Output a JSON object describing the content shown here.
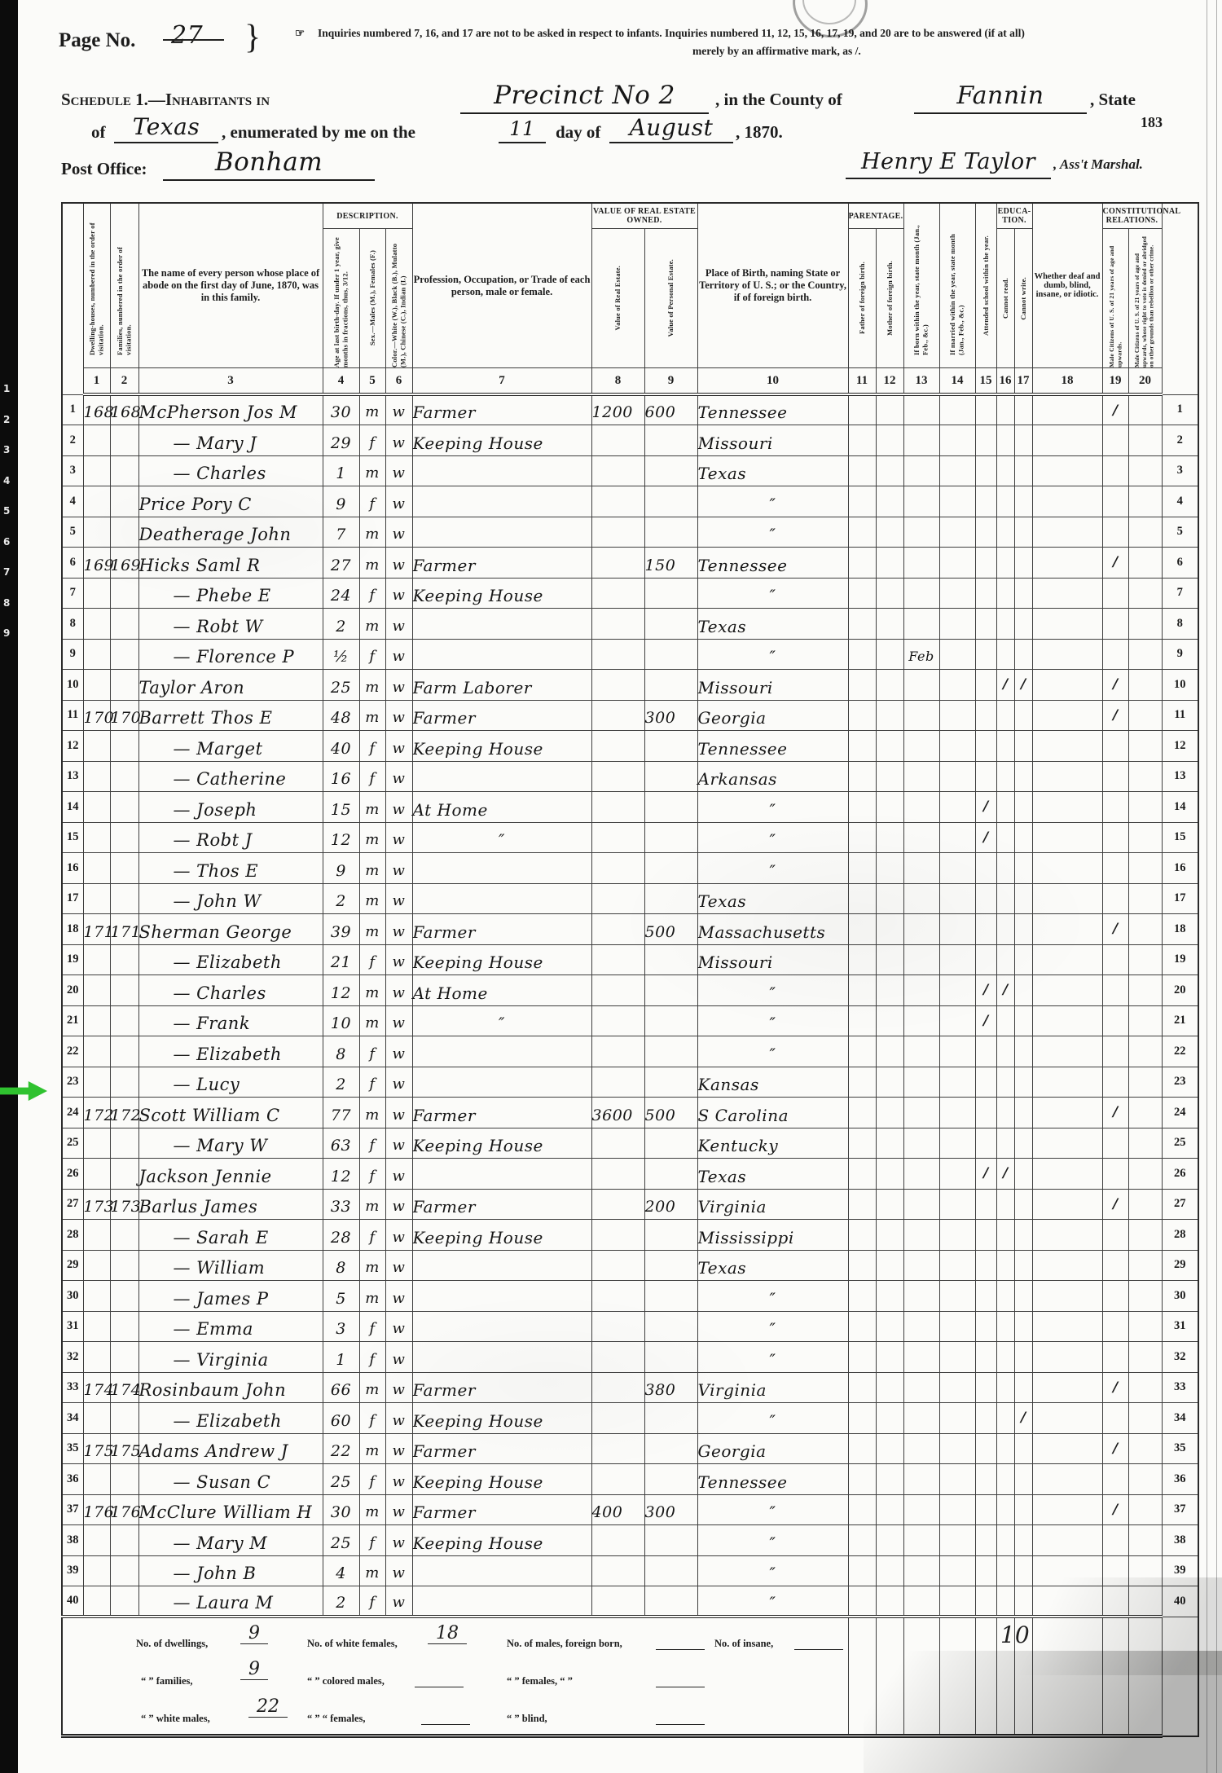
{
  "page_header": {
    "page_no_label": "Page No.",
    "page_no_value": "27",
    "brace": "}",
    "notice_icon": "☞",
    "notice_line1": "Inquiries numbered 7, 16, and 17 are not to be asked in respect to infants.  Inquiries numbered 11, 12, 15, 16, 17, 19, and 20 are to be answered (if at all)",
    "notice_line2": "merely by an affirmative mark, as /.",
    "schedule_label": "Schedule 1.—Inhabitants in",
    "division_value": "Precinct No 2",
    "county_label": ", in the County of",
    "county_value": "Fannin",
    "state_suffix": ", State",
    "of_label": "of",
    "state_value": "Texas",
    "enumerated_label": ", enumerated by me on the",
    "day_value": "11",
    "day_of_label": "day of",
    "month_value": "August",
    "year_suffix": ", 1870.",
    "sheet_number": "183",
    "post_office_label": "Post Office:",
    "post_office_value": "Bonham",
    "marshal_signature": "Henry E Taylor",
    "marshal_suffix": ", Ass't Marshal."
  },
  "table": {
    "bands": {
      "description": "Description.",
      "value_owned": "Value of Real Estate Owned.",
      "parentage": "Parentage.",
      "education": "Educa-tion.",
      "constitutional": "Constitutional Relations."
    },
    "columns": [
      {
        "no": "1",
        "header": "Dwelling-houses, numbered in the order of visitation."
      },
      {
        "no": "2",
        "header": "Families, numbered in the order of visitation."
      },
      {
        "no": "3",
        "header": "The name of every person whose place of abode on the first day of June, 1870, was in this family."
      },
      {
        "no": "4",
        "header": "Age at last birth-day. If under 1 year, give months in fractions, thus, 3/12."
      },
      {
        "no": "5",
        "header": "Sex.—Males (M.), Females (F.)"
      },
      {
        "no": "6",
        "header": "Color.—White (W.), Black (B.), Mulatto (M.), Chinese (C.), Indian (I.)"
      },
      {
        "no": "7",
        "header": "Profession, Occupation, or Trade of each person, male or female."
      },
      {
        "no": "8",
        "header": "Value of Real Estate."
      },
      {
        "no": "9",
        "header": "Value of Personal Estate."
      },
      {
        "no": "10",
        "header": "Place of Birth, naming State or Territory of U. S.; or the Country, if of foreign birth."
      },
      {
        "no": "11",
        "header": "Father of foreign birth."
      },
      {
        "no": "12",
        "header": "Mother of foreign birth."
      },
      {
        "no": "13",
        "header": "If born within the year, state month (Jan., Feb., &c.)"
      },
      {
        "no": "14",
        "header": "If married within the year, state month (Jan., Feb., &c.)"
      },
      {
        "no": "15",
        "header": "Attended school within the year."
      },
      {
        "no": "16",
        "header": "Cannot read."
      },
      {
        "no": "17",
        "header": "Cannot write."
      },
      {
        "no": "18",
        "header": "Whether deaf and dumb, blind, insane, or idiotic."
      },
      {
        "no": "19",
        "header": "Male Citizens of U. S. of 21 years of age and upwards."
      },
      {
        "no": "20",
        "header": "Male Citizens of U. S. of 21 years of age and upwards, whose right to vote is denied or abridged on other grounds than rebellion or other crime."
      }
    ],
    "rows": [
      {
        "n": 1,
        "dw": "168",
        "fam": "168",
        "name": "McPherson Jos M",
        "age": "30",
        "sex": "M",
        "race": "W",
        "occ": "Farmer",
        "re": "1200",
        "pe": "600",
        "birth": "Tennessee",
        "t19": "/"
      },
      {
        "n": 2,
        "name": "— Mary J",
        "age": "29",
        "sex": "F",
        "race": "W",
        "occ": "Keeping House",
        "birth": "Missouri"
      },
      {
        "n": 3,
        "name": "— Charles",
        "age": "1",
        "sex": "M",
        "race": "W",
        "birth": "Texas"
      },
      {
        "n": 4,
        "name": "Price Pory C",
        "age": "9",
        "sex": "F",
        "race": "W",
        "birth": "″"
      },
      {
        "n": 5,
        "name": "Deatherage John",
        "age": "7",
        "sex": "M",
        "race": "W",
        "birth": "″"
      },
      {
        "n": 6,
        "dw": "169",
        "fam": "169",
        "name": "Hicks Saml R",
        "age": "27",
        "sex": "M",
        "race": "W",
        "occ": "Farmer",
        "pe": "150",
        "birth": "Tennessee",
        "t19": "/"
      },
      {
        "n": 7,
        "name": "— Phebe E",
        "age": "24",
        "sex": "F",
        "race": "W",
        "occ": "Keeping House",
        "birth": "″"
      },
      {
        "n": 8,
        "name": "— Robt W",
        "age": "2",
        "sex": "M",
        "race": "W",
        "birth": "Texas"
      },
      {
        "n": 9,
        "name": "— Florence P",
        "age": "½",
        "sex": "F",
        "race": "W",
        "birth": "″",
        "m": "Feb"
      },
      {
        "n": 10,
        "name": "Taylor Aron",
        "age": "25",
        "sex": "M",
        "race": "W",
        "occ": "Farm Laborer",
        "birth": "Missouri",
        "t16": "/",
        "t17": "/",
        "t19": "/"
      },
      {
        "n": 11,
        "dw": "170",
        "fam": "170",
        "name": "Barrett Thos E",
        "age": "48",
        "sex": "M",
        "race": "W",
        "occ": "Farmer",
        "pe": "300",
        "birth": "Georgia",
        "t19": "/"
      },
      {
        "n": 12,
        "name": "— Marget",
        "age": "40",
        "sex": "F",
        "race": "W",
        "occ": "Keeping House",
        "birth": "Tennessee"
      },
      {
        "n": 13,
        "name": "— Catherine",
        "age": "16",
        "sex": "F",
        "race": "W",
        "birth": "Arkansas"
      },
      {
        "n": 14,
        "name": "— Joseph",
        "age": "15",
        "sex": "M",
        "race": "W",
        "occ": "At Home",
        "birth": "″",
        "t15": "/"
      },
      {
        "n": 15,
        "name": "— Robt J",
        "age": "12",
        "sex": "M",
        "race": "W",
        "occ": "″",
        "birth": "″",
        "t15": "/"
      },
      {
        "n": 16,
        "name": "— Thos E",
        "age": "9",
        "sex": "M",
        "race": "W",
        "birth": "″"
      },
      {
        "n": 17,
        "name": "— John W",
        "age": "2",
        "sex": "M",
        "race": "W",
        "birth": "Texas"
      },
      {
        "n": 18,
        "dw": "171",
        "fam": "171",
        "name": "Sherman George",
        "age": "39",
        "sex": "M",
        "race": "W",
        "occ": "Farmer",
        "pe": "500",
        "birth": "Massachusetts",
        "t19": "/"
      },
      {
        "n": 19,
        "name": "— Elizabeth",
        "age": "21",
        "sex": "F",
        "race": "W",
        "occ": "Keeping House",
        "birth": "Missouri"
      },
      {
        "n": 20,
        "name": "— Charles",
        "age": "12",
        "sex": "M",
        "race": "W",
        "occ": "At Home",
        "birth": "″",
        "t15": "/",
        "t16": "/"
      },
      {
        "n": 21,
        "name": "— Frank",
        "age": "10",
        "sex": "M",
        "race": "W",
        "occ": "″",
        "birth": "″",
        "t15": "/"
      },
      {
        "n": 22,
        "name": "— Elizabeth",
        "age": "8",
        "sex": "F",
        "race": "W",
        "birth": "″"
      },
      {
        "n": 23,
        "name": "— Lucy",
        "age": "2",
        "sex": "F",
        "race": "W",
        "birth": "Kansas"
      },
      {
        "n": 24,
        "dw": "172",
        "fam": "172",
        "name": "Scott William C",
        "age": "77",
        "sex": "M",
        "race": "W",
        "occ": "Farmer",
        "re": "3600",
        "pe": "500",
        "birth": "S Carolina",
        "t19": "/",
        "highlight": true
      },
      {
        "n": 25,
        "name": "— Mary W",
        "age": "63",
        "sex": "F",
        "race": "W",
        "occ": "Keeping House",
        "birth": "Kentucky"
      },
      {
        "n": 26,
        "name": "Jackson Jennie",
        "age": "12",
        "sex": "F",
        "race": "W",
        "birth": "Texas",
        "t15": "/",
        "t16": "/"
      },
      {
        "n": 27,
        "dw": "173",
        "fam": "173",
        "name": "Barlus James",
        "age": "33",
        "sex": "M",
        "race": "W",
        "occ": "Farmer",
        "pe": "200",
        "birth": "Virginia",
        "t19": "/"
      },
      {
        "n": 28,
        "name": "— Sarah E",
        "age": "28",
        "sex": "F",
        "race": "W",
        "occ": "Keeping House",
        "birth": "Mississippi"
      },
      {
        "n": 29,
        "name": "— William",
        "age": "8",
        "sex": "M",
        "race": "W",
        "birth": "Texas"
      },
      {
        "n": 30,
        "name": "— James P",
        "age": "5",
        "sex": "M",
        "race": "W",
        "birth": "″"
      },
      {
        "n": 31,
        "name": "— Emma",
        "age": "3",
        "sex": "F",
        "race": "W",
        "birth": "″"
      },
      {
        "n": 32,
        "name": "— Virginia",
        "age": "1",
        "sex": "F",
        "race": "W",
        "birth": "″"
      },
      {
        "n": 33,
        "dw": "174",
        "fam": "174",
        "name": "Rosinbaum John",
        "age": "66",
        "sex": "M",
        "race": "W",
        "occ": "Farmer",
        "pe": "380",
        "birth": "Virginia",
        "t19": "/"
      },
      {
        "n": 34,
        "name": "— Elizabeth",
        "age": "60",
        "sex": "F",
        "race": "W",
        "occ": "Keeping House",
        "birth": "″",
        "t17": "/"
      },
      {
        "n": 35,
        "dw": "175",
        "fam": "175",
        "name": "Adams Andrew J",
        "age": "22",
        "sex": "M",
        "race": "W",
        "occ": "Farmer",
        "birth": "Georgia",
        "t19": "/"
      },
      {
        "n": 36,
        "name": "— Susan C",
        "age": "25",
        "sex": "F",
        "race": "W",
        "occ": "Keeping House",
        "birth": "Tennessee"
      },
      {
        "n": 37,
        "dw": "176",
        "fam": "176",
        "name": "McClure William H",
        "age": "30",
        "sex": "M",
        "race": "W",
        "occ": "Farmer",
        "re": "400",
        "pe": "300",
        "birth": "″",
        "t19": "/"
      },
      {
        "n": 38,
        "name": "— Mary M",
        "age": "25",
        "sex": "F",
        "race": "W",
        "occ": "Keeping House",
        "birth": "″"
      },
      {
        "n": 39,
        "name": "— John B",
        "age": "4",
        "sex": "M",
        "race": "W",
        "birth": "″"
      },
      {
        "n": 40,
        "name": "— Laura M",
        "age": "2",
        "sex": "F",
        "race": "W",
        "birth": "″"
      }
    ]
  },
  "footer": {
    "dwellings_label": "No. of dwellings,",
    "dwellings_value": "9",
    "white_females_label": "No. of white females,",
    "white_females_value": "18",
    "males_foreign_label": "No. of males, foreign born,",
    "insane_label": "No. of insane,",
    "families_label": "“  ” families,",
    "families_value": "9",
    "colored_males_label": "“  ” colored males,",
    "females_foreign_label": "“  ” females,  “    ”",
    "white_males_label": "“  ” white males,",
    "white_males_value": "22",
    "colored_females_label": "“  ”   “   females,",
    "blind_label": "“  ” blind,",
    "stray_number": "10"
  },
  "film_strip_numbers": [
    "1",
    "2",
    "3",
    "4",
    "5",
    "6",
    "7",
    "8",
    "9"
  ],
  "pointer_arrow": {
    "row": 24,
    "color": "#2fc22f"
  }
}
